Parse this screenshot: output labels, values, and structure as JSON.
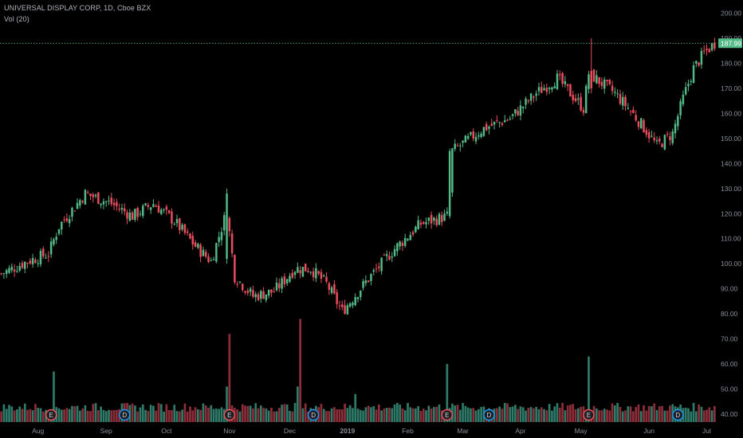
{
  "chart_data": {
    "type": "candlestick",
    "title": "UNIVERSAL DISPLAY CORP, 1D, Cboe BZX",
    "volume_label": "Vol (20)",
    "last_price": 187.99,
    "last_price_label": "187.99",
    "y_range": [
      35,
      205
    ],
    "y_ticks": [
      40,
      50,
      60,
      70,
      80,
      90,
      100,
      110,
      120,
      130,
      140,
      150,
      160,
      170,
      180,
      190,
      200
    ],
    "y_tick_labels": [
      "40.00",
      "50.00",
      "60.00",
      "70.00",
      "80.00",
      "90.00",
      "100.00",
      "110.00",
      "120.00",
      "130.00",
      "140.00",
      "150.00",
      "160.00",
      "170.00",
      "180.00",
      "190.00",
      "200.00"
    ],
    "x_labels": [
      "Aug",
      "Sep",
      "Oct",
      "Nov",
      "Dec",
      "2019",
      "Feb",
      "Mar",
      "Apr",
      "May",
      "Jun",
      "Jul"
    ],
    "x_label_bar_index": [
      14,
      40,
      63,
      87,
      110,
      132,
      155,
      176,
      198,
      221,
      247,
      269
    ],
    "events": [
      {
        "type": "E",
        "bar": 19
      },
      {
        "type": "D",
        "bar": 47
      },
      {
        "type": "E",
        "bar": 87
      },
      {
        "type": "D",
        "bar": 119
      },
      {
        "type": "E",
        "bar": 170
      },
      {
        "type": "D",
        "bar": 186
      },
      {
        "type": "E",
        "bar": 224
      },
      {
        "type": "D",
        "bar": 258
      }
    ],
    "colors": {
      "up": "#53b987",
      "down": "#eb4d5c",
      "vol_up": "#2f7b6a",
      "vol_down": "#8c2f3a",
      "badge_bg": "#1b1e23",
      "event_E": "#f0525a",
      "event_D": "#2196f3"
    },
    "close_keypoints": [
      [
        0,
        96
      ],
      [
        10,
        101
      ],
      [
        18,
        104
      ],
      [
        22,
        115
      ],
      [
        32,
        128
      ],
      [
        42,
        124
      ],
      [
        50,
        119
      ],
      [
        58,
        124
      ],
      [
        66,
        117
      ],
      [
        74,
        107
      ],
      [
        80,
        101
      ],
      [
        86,
        121
      ],
      [
        89,
        95
      ],
      [
        96,
        87
      ],
      [
        104,
        89
      ],
      [
        112,
        98
      ],
      [
        118,
        98
      ],
      [
        124,
        92
      ],
      [
        130,
        81
      ],
      [
        140,
        94
      ],
      [
        150,
        106
      ],
      [
        160,
        116
      ],
      [
        170,
        119
      ],
      [
        171,
        128
      ],
      [
        172,
        145
      ],
      [
        184,
        154
      ],
      [
        194,
        158
      ],
      [
        204,
        168
      ],
      [
        212,
        174
      ],
      [
        222,
        162
      ],
      [
        224,
        176
      ],
      [
        234,
        168
      ],
      [
        240,
        161
      ],
      [
        246,
        153
      ],
      [
        250,
        147
      ],
      [
        256,
        152
      ],
      [
        260,
        166
      ],
      [
        264,
        178
      ],
      [
        268,
        184
      ],
      [
        272,
        188
      ]
    ],
    "volume_keypoints": [
      [
        0,
        43
      ],
      [
        60,
        43
      ],
      [
        130,
        43
      ],
      [
        200,
        43
      ],
      [
        272,
        43
      ]
    ],
    "volume_spikes": [
      {
        "bar": 20,
        "value": 57
      },
      {
        "bar": 86,
        "value": 51
      },
      {
        "bar": 87,
        "value": 72
      },
      {
        "bar": 113,
        "value": 51
      },
      {
        "bar": 114,
        "value": 78
      },
      {
        "bar": 135,
        "value": 48
      },
      {
        "bar": 170,
        "value": 60
      },
      {
        "bar": 224,
        "value": 63
      }
    ],
    "big_moves": [
      {
        "bar": 86,
        "open": 102,
        "close": 128,
        "high": 130,
        "low": 100
      },
      {
        "bar": 171,
        "open": 119,
        "close": 145,
        "high": 146,
        "low": 118
      },
      {
        "bar": 225,
        "open": 177,
        "close": 170,
        "high": 190,
        "low": 168
      }
    ]
  }
}
